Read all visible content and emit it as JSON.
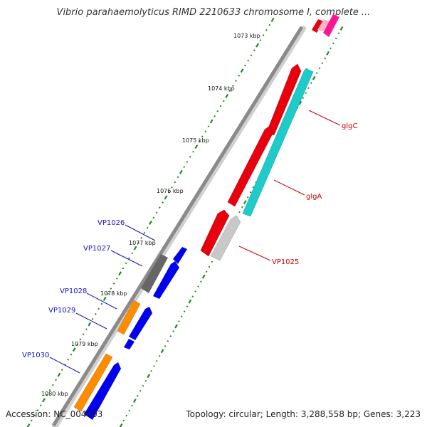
{
  "title": "Vibrio parahaemolyticus RIMD 2210633 chromosome I, complete ...",
  "footer": {
    "accession": "Accession: NC_004603",
    "summary": "Topology: circular; Length: 3,288,558 bp; Genes: 3,223"
  },
  "ruler": {
    "ticks": [
      "1073 kbp",
      "1074 kbp",
      "1075 kbp",
      "1076 kbp",
      "1077 kbp",
      "1078 kbp",
      "1079 kbp",
      "1080 kbp"
    ]
  },
  "colors": {
    "backbone": "#8a8a8a",
    "ruler": "#1e8a1e",
    "forward_label": "#1010cc",
    "reverse_label": "#cc0000",
    "red": "#e8000f",
    "cyan": "#1fcaca",
    "blue": "#0000ee",
    "orange": "#ff8c00",
    "gray": "#666666",
    "lightgray": "#c8c8c8",
    "pink": "#ffb6c8",
    "magenta": "#ff1493"
  },
  "genes": {
    "labeled": [
      {
        "id": "VP1026",
        "strand": "forward",
        "color": "blue"
      },
      {
        "id": "VP1027",
        "strand": "forward",
        "color": "gray"
      },
      {
        "id": "VP1028",
        "strand": "forward",
        "color": "blue"
      },
      {
        "id": "VP1029",
        "strand": "forward",
        "color": "orange"
      },
      {
        "id": "VP1030",
        "strand": "forward",
        "color": "orange"
      },
      {
        "id": "glgC",
        "strand": "reverse",
        "color": "cyan"
      },
      {
        "id": "glgA",
        "strand": "reverse",
        "color": "red"
      },
      {
        "id": "VP1025",
        "strand": "reverse",
        "color": "lightgray"
      }
    ],
    "unlabeled_colors": [
      "red",
      "red",
      "blue",
      "blue",
      "red",
      "pink",
      "magenta"
    ]
  }
}
